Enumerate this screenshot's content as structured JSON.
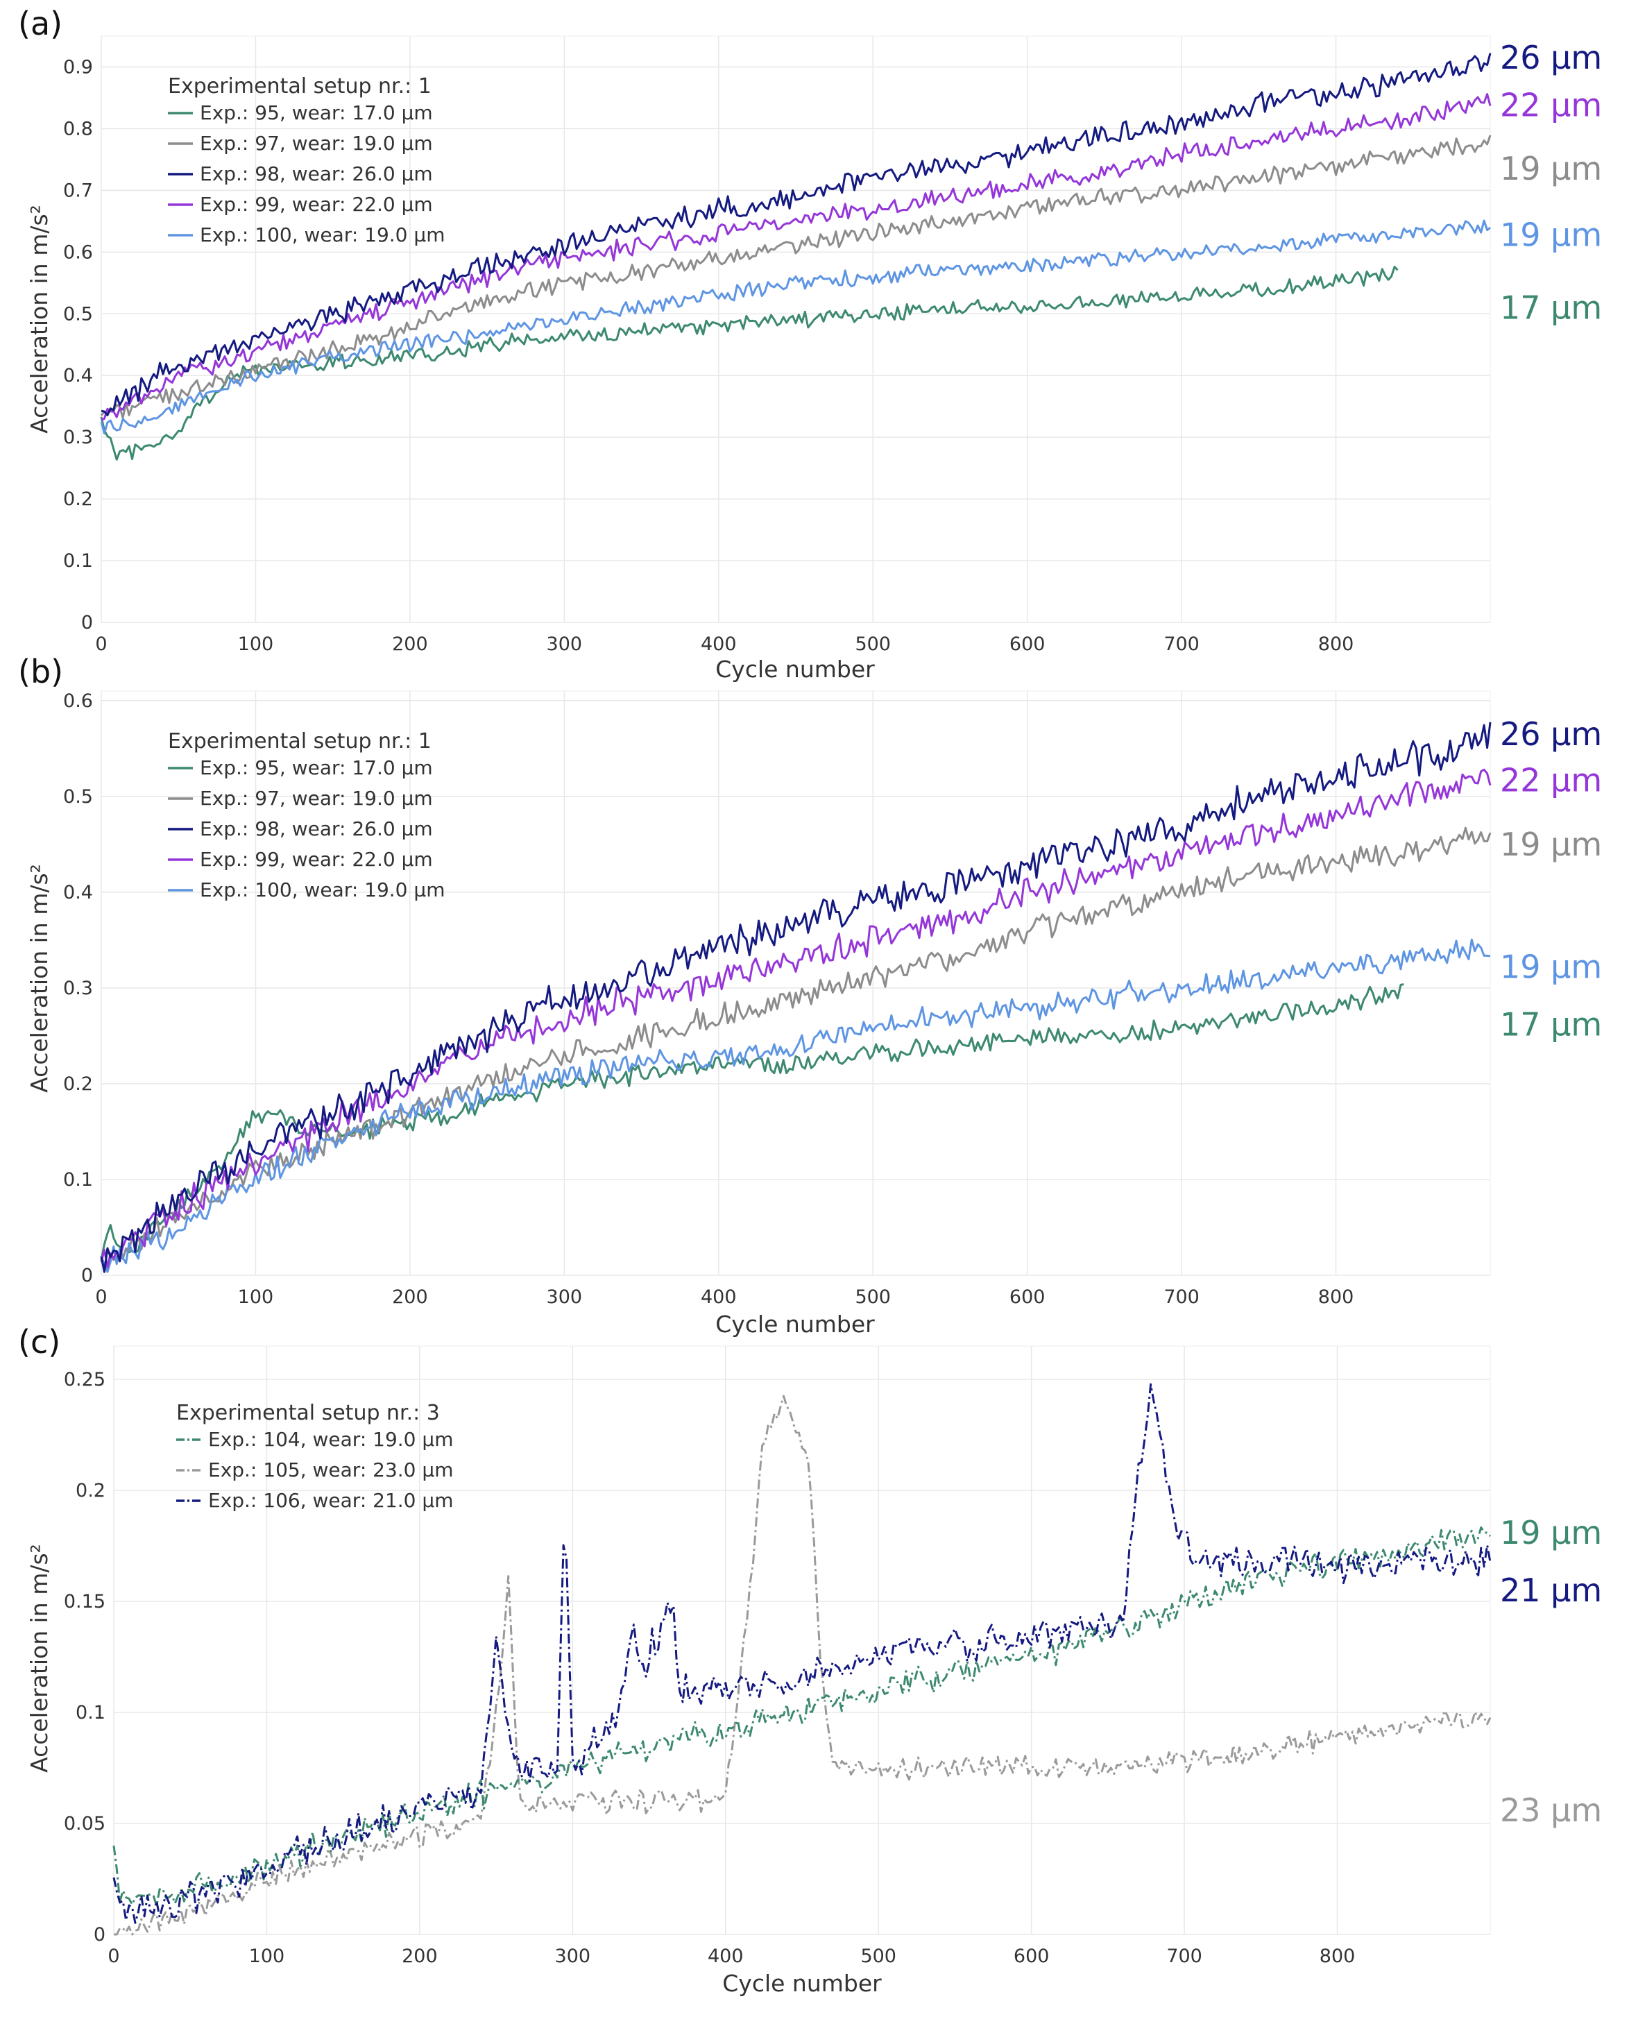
{
  "figure": {
    "colors": {
      "95": "#3d8970",
      "97": "#8c8c8c",
      "98": "#141a80",
      "99": "#9536d9",
      "100": "#5e95e3",
      "104": "#3d8970",
      "105": "#9a9a9a",
      "106": "#141a80"
    }
  },
  "chart_data": [
    {
      "panel_label": "(a)",
      "type": "line",
      "title": "",
      "xlabel": "Cycle number",
      "ylabel": "Acceleration in m/s²",
      "xlim": [
        0,
        900
      ],
      "ylim": [
        0,
        0.95
      ],
      "xticks": [
        0,
        100,
        200,
        300,
        400,
        500,
        600,
        700,
        800
      ],
      "yticks": [
        0,
        0.1,
        0.2,
        0.3,
        0.4,
        0.5,
        0.6,
        0.7,
        0.8,
        0.9
      ],
      "ytick_labels": [
        "0",
        "0.1",
        "0.2",
        "0.3",
        "0.4",
        "0.5",
        "0.6",
        "0.7",
        "0.8",
        "0.9"
      ],
      "grid": true,
      "line_style": "solid",
      "legend": {
        "title": "Experimental setup nr.: 1",
        "location": "top-left"
      },
      "series": [
        {
          "id": "95",
          "name": "Exp.: 95, wear: 17.0 µm",
          "end_label": "17 µm",
          "x": [
            0,
            10,
            25,
            45,
            60,
            80,
            100,
            150,
            200,
            250,
            300,
            350,
            400,
            450,
            500,
            550,
            600,
            650,
            700,
            750,
            800,
            840
          ],
          "y": [
            0.33,
            0.27,
            0.28,
            0.3,
            0.34,
            0.39,
            0.41,
            0.42,
            0.43,
            0.45,
            0.46,
            0.47,
            0.48,
            0.49,
            0.5,
            0.51,
            0.51,
            0.52,
            0.53,
            0.54,
            0.55,
            0.57
          ],
          "noise": 0.01
        },
        {
          "id": "97",
          "name": "Exp.: 97, wear: 19.0 µm",
          "end_label": "19 µm",
          "x": [
            0,
            20,
            50,
            100,
            150,
            200,
            250,
            300,
            350,
            400,
            450,
            500,
            550,
            600,
            650,
            700,
            750,
            800,
            850,
            900
          ],
          "y": [
            0.34,
            0.35,
            0.37,
            0.41,
            0.44,
            0.48,
            0.52,
            0.55,
            0.57,
            0.59,
            0.61,
            0.63,
            0.65,
            0.67,
            0.69,
            0.7,
            0.72,
            0.74,
            0.76,
            0.78
          ],
          "noise": 0.011
        },
        {
          "id": "98",
          "name": "Exp.: 98, wear: 26.0 µm",
          "end_label": "26 µm",
          "x": [
            0,
            20,
            50,
            100,
            150,
            200,
            250,
            300,
            350,
            400,
            450,
            500,
            550,
            600,
            650,
            700,
            750,
            800,
            850,
            900
          ],
          "y": [
            0.34,
            0.37,
            0.42,
            0.46,
            0.5,
            0.54,
            0.58,
            0.61,
            0.64,
            0.67,
            0.69,
            0.72,
            0.74,
            0.76,
            0.79,
            0.81,
            0.84,
            0.86,
            0.88,
            0.91
          ],
          "noise": 0.014
        },
        {
          "id": "99",
          "name": "Exp.: 99, wear: 22.0 µm",
          "end_label": "22 µm",
          "x": [
            0,
            20,
            50,
            100,
            150,
            200,
            250,
            300,
            350,
            400,
            450,
            500,
            550,
            600,
            650,
            700,
            750,
            800,
            850,
            900
          ],
          "y": [
            0.33,
            0.36,
            0.4,
            0.44,
            0.48,
            0.52,
            0.56,
            0.59,
            0.61,
            0.63,
            0.65,
            0.67,
            0.69,
            0.71,
            0.73,
            0.76,
            0.78,
            0.8,
            0.82,
            0.85
          ],
          "noise": 0.012
        },
        {
          "id": "100",
          "name": "Exp.: 100, wear: 19.0 µm",
          "end_label": "19 µm",
          "x": [
            0,
            20,
            50,
            100,
            150,
            200,
            250,
            300,
            350,
            400,
            450,
            500,
            550,
            600,
            650,
            700,
            750,
            800,
            850,
            900
          ],
          "y": [
            0.32,
            0.32,
            0.35,
            0.4,
            0.43,
            0.45,
            0.47,
            0.49,
            0.51,
            0.53,
            0.55,
            0.56,
            0.57,
            0.58,
            0.59,
            0.6,
            0.61,
            0.62,
            0.63,
            0.64
          ],
          "noise": 0.01
        }
      ]
    },
    {
      "panel_label": "(b)",
      "type": "line",
      "title": "",
      "xlabel": "Cycle number",
      "ylabel": "Acceleration in m/s²",
      "xlim": [
        0,
        900
      ],
      "ylim": [
        0,
        0.61
      ],
      "xticks": [
        0,
        100,
        200,
        300,
        400,
        500,
        600,
        700,
        800
      ],
      "yticks": [
        0,
        0.1,
        0.2,
        0.3,
        0.4,
        0.5,
        0.6
      ],
      "ytick_labels": [
        "0",
        "0.1",
        "0.2",
        "0.3",
        "0.4",
        "0.5",
        "0.6"
      ],
      "grid": true,
      "line_style": "solid",
      "legend": {
        "title": "Experimental setup nr.: 1",
        "location": "top-left"
      },
      "series": [
        {
          "id": "95",
          "name": "Exp.: 95, wear: 17.0 µm",
          "end_label": "17 µm",
          "x": [
            0,
            5,
            15,
            50,
            80,
            95,
            110,
            130,
            160,
            200,
            250,
            300,
            350,
            400,
            450,
            500,
            550,
            600,
            650,
            700,
            750,
            800,
            845
          ],
          "y": [
            0.01,
            0.05,
            0.02,
            0.07,
            0.12,
            0.16,
            0.17,
            0.15,
            0.15,
            0.16,
            0.18,
            0.2,
            0.21,
            0.22,
            0.22,
            0.23,
            0.24,
            0.25,
            0.25,
            0.26,
            0.27,
            0.28,
            0.3
          ],
          "noise": 0.008
        },
        {
          "id": "97",
          "name": "Exp.: 97, wear: 19.0 µm",
          "end_label": "19 µm",
          "x": [
            0,
            50,
            100,
            150,
            200,
            250,
            300,
            350,
            400,
            450,
            500,
            550,
            600,
            650,
            700,
            750,
            800,
            850,
            900
          ],
          "y": [
            0.01,
            0.06,
            0.11,
            0.14,
            0.17,
            0.2,
            0.23,
            0.25,
            0.27,
            0.29,
            0.31,
            0.33,
            0.36,
            0.38,
            0.4,
            0.42,
            0.43,
            0.44,
            0.46
          ],
          "noise": 0.01
        },
        {
          "id": "98",
          "name": "Exp.: 98, wear: 26.0 µm",
          "end_label": "26 µm",
          "x": [
            0,
            50,
            100,
            150,
            200,
            250,
            300,
            350,
            400,
            450,
            500,
            550,
            600,
            650,
            700,
            750,
            800,
            850,
            900
          ],
          "y": [
            0.01,
            0.08,
            0.13,
            0.17,
            0.21,
            0.25,
            0.29,
            0.31,
            0.34,
            0.37,
            0.39,
            0.41,
            0.43,
            0.45,
            0.47,
            0.5,
            0.52,
            0.54,
            0.56
          ],
          "noise": 0.014
        },
        {
          "id": "99",
          "name": "Exp.: 99, wear: 22.0 µm",
          "end_label": "22 µm",
          "x": [
            0,
            50,
            100,
            150,
            200,
            250,
            300,
            350,
            400,
            450,
            500,
            550,
            600,
            650,
            700,
            750,
            800,
            850,
            900
          ],
          "y": [
            0.01,
            0.07,
            0.12,
            0.16,
            0.2,
            0.24,
            0.27,
            0.29,
            0.31,
            0.33,
            0.35,
            0.37,
            0.4,
            0.42,
            0.44,
            0.46,
            0.48,
            0.5,
            0.52
          ],
          "noise": 0.012
        },
        {
          "id": "100",
          "name": "Exp.: 100, wear: 19.0 µm",
          "end_label": "19 µm",
          "x": [
            0,
            50,
            100,
            150,
            200,
            250,
            300,
            350,
            400,
            450,
            500,
            550,
            600,
            650,
            700,
            750,
            800,
            850,
            900
          ],
          "y": [
            0.01,
            0.05,
            0.1,
            0.14,
            0.17,
            0.19,
            0.21,
            0.22,
            0.23,
            0.24,
            0.26,
            0.27,
            0.28,
            0.29,
            0.3,
            0.31,
            0.32,
            0.33,
            0.34
          ],
          "noise": 0.01
        }
      ]
    },
    {
      "panel_label": "(c)",
      "type": "line",
      "title": "",
      "xlabel": "Cycle number",
      "ylabel": "Acceleration in m/s²",
      "xlim": [
        0,
        900
      ],
      "ylim": [
        0,
        0.265
      ],
      "xticks": [
        0,
        100,
        200,
        300,
        400,
        500,
        600,
        700,
        800
      ],
      "yticks": [
        0,
        0.05,
        0.1,
        0.15,
        0.2,
        0.25
      ],
      "ytick_labels": [
        "0",
        "0.05",
        "0.1",
        "0.15",
        "0.2",
        "0.25"
      ],
      "grid": true,
      "line_style": "dashdot",
      "legend": {
        "title": "Experimental setup nr.: 3",
        "location": "top-left"
      },
      "series": [
        {
          "id": "104",
          "name": "Exp.: 104, wear: 19.0 µm",
          "end_label": "19 µm",
          "x": [
            0,
            5,
            15,
            50,
            100,
            150,
            200,
            250,
            300,
            350,
            400,
            450,
            500,
            550,
            600,
            650,
            700,
            750,
            800,
            850,
            900
          ],
          "y": [
            0.04,
            0.015,
            0.015,
            0.02,
            0.03,
            0.045,
            0.055,
            0.065,
            0.075,
            0.085,
            0.092,
            0.1,
            0.11,
            0.118,
            0.125,
            0.135,
            0.15,
            0.16,
            0.168,
            0.174,
            0.18
          ],
          "noise": 0.005
        },
        {
          "id": "105",
          "name": "Exp.: 105, wear: 23.0 µm",
          "end_label": "23 µm",
          "x": [
            0,
            50,
            100,
            150,
            200,
            240,
            250,
            258,
            265,
            300,
            350,
            400,
            415,
            425,
            440,
            455,
            462,
            470,
            500,
            600,
            700,
            750,
            800,
            850,
            900
          ],
          "y": [
            0.0,
            0.01,
            0.025,
            0.035,
            0.045,
            0.05,
            0.1,
            0.16,
            0.06,
            0.06,
            0.06,
            0.06,
            0.15,
            0.225,
            0.24,
            0.21,
            0.12,
            0.075,
            0.075,
            0.075,
            0.078,
            0.082,
            0.09,
            0.095,
            0.098
          ],
          "noise": 0.004
        },
        {
          "id": "106",
          "name": "Exp.: 106, wear: 21.0 µm",
          "end_label": "21 µm",
          "x": [
            0,
            5,
            15,
            50,
            100,
            150,
            200,
            240,
            250,
            258,
            265,
            290,
            295,
            300,
            330,
            340,
            345,
            365,
            370,
            380,
            400,
            450,
            500,
            550,
            600,
            660,
            670,
            678,
            685,
            695,
            710,
            750,
            800,
            850,
            900
          ],
          "y": [
            0.03,
            0.01,
            0.01,
            0.015,
            0.03,
            0.045,
            0.055,
            0.065,
            0.13,
            0.09,
            0.075,
            0.075,
            0.19,
            0.075,
            0.1,
            0.14,
            0.12,
            0.15,
            0.11,
            0.11,
            0.11,
            0.115,
            0.125,
            0.13,
            0.135,
            0.14,
            0.21,
            0.245,
            0.22,
            0.18,
            0.17,
            0.168,
            0.166,
            0.167,
            0.168
          ],
          "noise": 0.006
        }
      ]
    }
  ]
}
